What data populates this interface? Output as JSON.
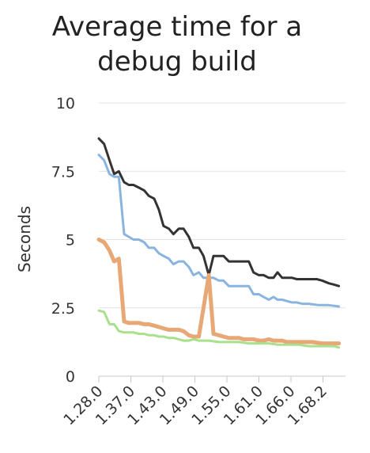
{
  "chart_data": {
    "type": "line",
    "title_lines": [
      "Average time for a",
      "debug build"
    ],
    "ylabel": "Seconds",
    "ylim": [
      0,
      10
    ],
    "y_ticks": [
      "0",
      "2.5",
      "5",
      "7.5",
      "10"
    ],
    "x_ticks": [
      "1.28.0",
      "1.37.0",
      "1.43.0",
      "1.49.0",
      "1.55.0",
      "1.61.0",
      "1.66.0",
      "1.68.2"
    ],
    "x_range": [
      0,
      37
    ],
    "grid": true,
    "series": [
      {
        "color": "#333333",
        "values": [
          8.7,
          8.5,
          7.9,
          7.4,
          7.5,
          7.1,
          7.0,
          7.0,
          6.9,
          6.8,
          6.6,
          6.5,
          6.1,
          5.5,
          5.4,
          5.2,
          5.4,
          5.4,
          5.1,
          4.7,
          4.7,
          4.4,
          3.7,
          4.4,
          4.4,
          4.4,
          4.2,
          4.2,
          4.2,
          4.2,
          4.2,
          3.8,
          3.7,
          3.7,
          3.6,
          3.6,
          3.8,
          3.6,
          3.6,
          3.6,
          3.55,
          3.55,
          3.55,
          3.55,
          3.55,
          3.5,
          3.4,
          3.35,
          3.3
        ],
        "x": [
          0,
          0.8,
          1.6,
          2.3,
          3,
          3.8,
          4.5,
          5.2,
          6,
          6.8,
          7.5,
          8.3,
          9,
          9.7,
          10.5,
          11.2,
          12,
          12.7,
          13.5,
          14.2,
          15,
          15.7,
          16.5,
          17.2,
          18,
          18.7,
          19.5,
          20.2,
          21,
          21.7,
          22.5,
          23.2,
          24,
          24.7,
          25.5,
          26.2,
          26.8,
          27.5,
          28.2,
          29,
          29.7,
          30.5,
          31.2,
          32,
          32.7,
          33.5,
          34.5,
          35.3,
          36
        ]
      },
      {
        "color": "#8ab4e0",
        "values": [
          8.1,
          7.9,
          7.4,
          7.3,
          7.3,
          5.2,
          5.1,
          5.0,
          5.0,
          4.9,
          4.7,
          4.7,
          4.5,
          4.4,
          4.3,
          4.1,
          4.2,
          4.2,
          4.0,
          3.7,
          3.8,
          3.6,
          3.6,
          3.6,
          3.5,
          3.5,
          3.3,
          3.3,
          3.3,
          3.3,
          3.3,
          3.0,
          3.0,
          2.9,
          2.8,
          2.9,
          2.8,
          2.8,
          2.75,
          2.7,
          2.7,
          2.65,
          2.65,
          2.6,
          2.6,
          2.55
        ],
        "x": [
          0,
          0.8,
          1.6,
          2.3,
          3,
          3.8,
          4.5,
          5.2,
          6,
          6.8,
          7.5,
          8.3,
          9,
          9.7,
          10.5,
          11.2,
          12,
          12.7,
          13.5,
          14.2,
          15,
          15.7,
          16.5,
          17.2,
          18,
          18.7,
          19.5,
          20.2,
          21,
          21.7,
          22.5,
          23.2,
          24,
          24.7,
          25.5,
          26.2,
          26.8,
          27.5,
          28.2,
          29,
          29.7,
          30.5,
          31.5,
          33,
          34.5,
          36
        ]
      },
      {
        "color": "#e8a875",
        "values": [
          5.0,
          4.9,
          4.6,
          4.2,
          4.3,
          2.0,
          1.95,
          1.95,
          1.95,
          1.9,
          1.9,
          1.85,
          1.8,
          1.75,
          1.7,
          1.7,
          1.7,
          1.65,
          1.5,
          1.45,
          1.45,
          3.7,
          1.55,
          1.5,
          1.45,
          1.4,
          1.4,
          1.4,
          1.35,
          1.35,
          1.35,
          1.3,
          1.3,
          1.35,
          1.3,
          1.3,
          1.25,
          1.25,
          1.25,
          1.25,
          1.2,
          1.2,
          1.2
        ],
        "x": [
          0,
          0.8,
          1.6,
          2.3,
          3,
          3.8,
          4.5,
          5.2,
          6,
          6.8,
          7.5,
          8.3,
          9,
          9.7,
          10.5,
          11.2,
          12,
          12.7,
          13.5,
          14.2,
          15,
          16.5,
          17.2,
          18,
          18.7,
          19.5,
          20.2,
          21,
          21.7,
          22.5,
          23.2,
          24,
          24.7,
          25.5,
          26.2,
          27.5,
          28.2,
          29.5,
          30.8,
          32,
          33.5,
          34.8,
          36
        ]
      },
      {
        "color": "#a8e08c",
        "values": [
          2.4,
          2.35,
          1.9,
          1.9,
          1.65,
          1.6,
          1.6,
          1.6,
          1.55,
          1.55,
          1.5,
          1.5,
          1.45,
          1.45,
          1.4,
          1.4,
          1.35,
          1.3,
          1.3,
          1.35,
          1.3,
          1.3,
          1.25,
          1.25,
          1.25,
          1.2,
          1.2,
          1.2,
          1.15,
          1.15,
          1.15,
          1.1,
          1.1,
          1.1,
          1.1,
          1.05
        ],
        "x": [
          0,
          0.8,
          1.6,
          2.3,
          3,
          3.8,
          4.5,
          5.2,
          6,
          6.8,
          7.5,
          8.3,
          9,
          9.7,
          10.5,
          11.2,
          12,
          12.7,
          13.5,
          14.2,
          15,
          16.5,
          18,
          19.5,
          21,
          22.5,
          24,
          25.5,
          27,
          28.5,
          30,
          31.5,
          33,
          34.5,
          35.3,
          36
        ]
      }
    ]
  }
}
